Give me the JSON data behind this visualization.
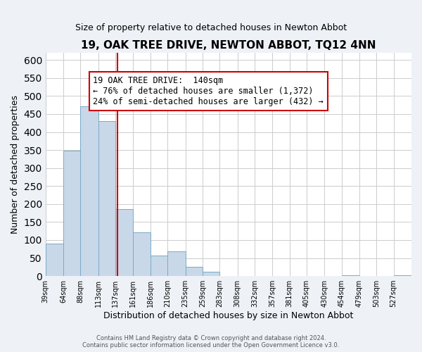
{
  "title": "19, OAK TREE DRIVE, NEWTON ABBOT, TQ12 4NN",
  "subtitle": "Size of property relative to detached houses in Newton Abbot",
  "xlabel": "Distribution of detached houses by size in Newton Abbot",
  "ylabel": "Number of detached properties",
  "footer_line1": "Contains HM Land Registry data © Crown copyright and database right 2024.",
  "footer_line2": "Contains public sector information licensed under the Open Government Licence v3.0.",
  "bin_edges": [
    39,
    64,
    88,
    113,
    137,
    161,
    186,
    210,
    235,
    259,
    283,
    308,
    332,
    357,
    381,
    405,
    430,
    454,
    479,
    503,
    527,
    552
  ],
  "bin_labels": [
    "39sqm",
    "64sqm",
    "88sqm",
    "113sqm",
    "137sqm",
    "161sqm",
    "186sqm",
    "210sqm",
    "235sqm",
    "259sqm",
    "283sqm",
    "308sqm",
    "332sqm",
    "357sqm",
    "381sqm",
    "405sqm",
    "430sqm",
    "454sqm",
    "479sqm",
    "503sqm",
    "527sqm"
  ],
  "bar_heights": [
    90,
    348,
    471,
    430,
    185,
    122,
    57,
    68,
    25,
    12,
    0,
    0,
    0,
    0,
    0,
    0,
    0,
    3,
    0,
    0,
    3
  ],
  "bar_color": "#c8d8e8",
  "bar_edge_color": "#7aaac8",
  "vline_x": 140,
  "vline_color": "#cc0000",
  "annotation_line1": "19 OAK TREE DRIVE:  140sqm",
  "annotation_line2": "← 76% of detached houses are smaller (1,372)",
  "annotation_line3": "24% of semi-detached houses are larger (432) →",
  "annotation_fontsize": 8.5,
  "ylim": [
    0,
    620
  ],
  "yticks": [
    0,
    50,
    100,
    150,
    200,
    250,
    300,
    350,
    400,
    450,
    500,
    550,
    600
  ],
  "title_fontsize": 11,
  "subtitle_fontsize": 9,
  "xlabel_fontsize": 9,
  "ylabel_fontsize": 9,
  "bg_color": "#eef2f7",
  "plot_bg_color": "#ffffff",
  "grid_color": "#cccccc"
}
